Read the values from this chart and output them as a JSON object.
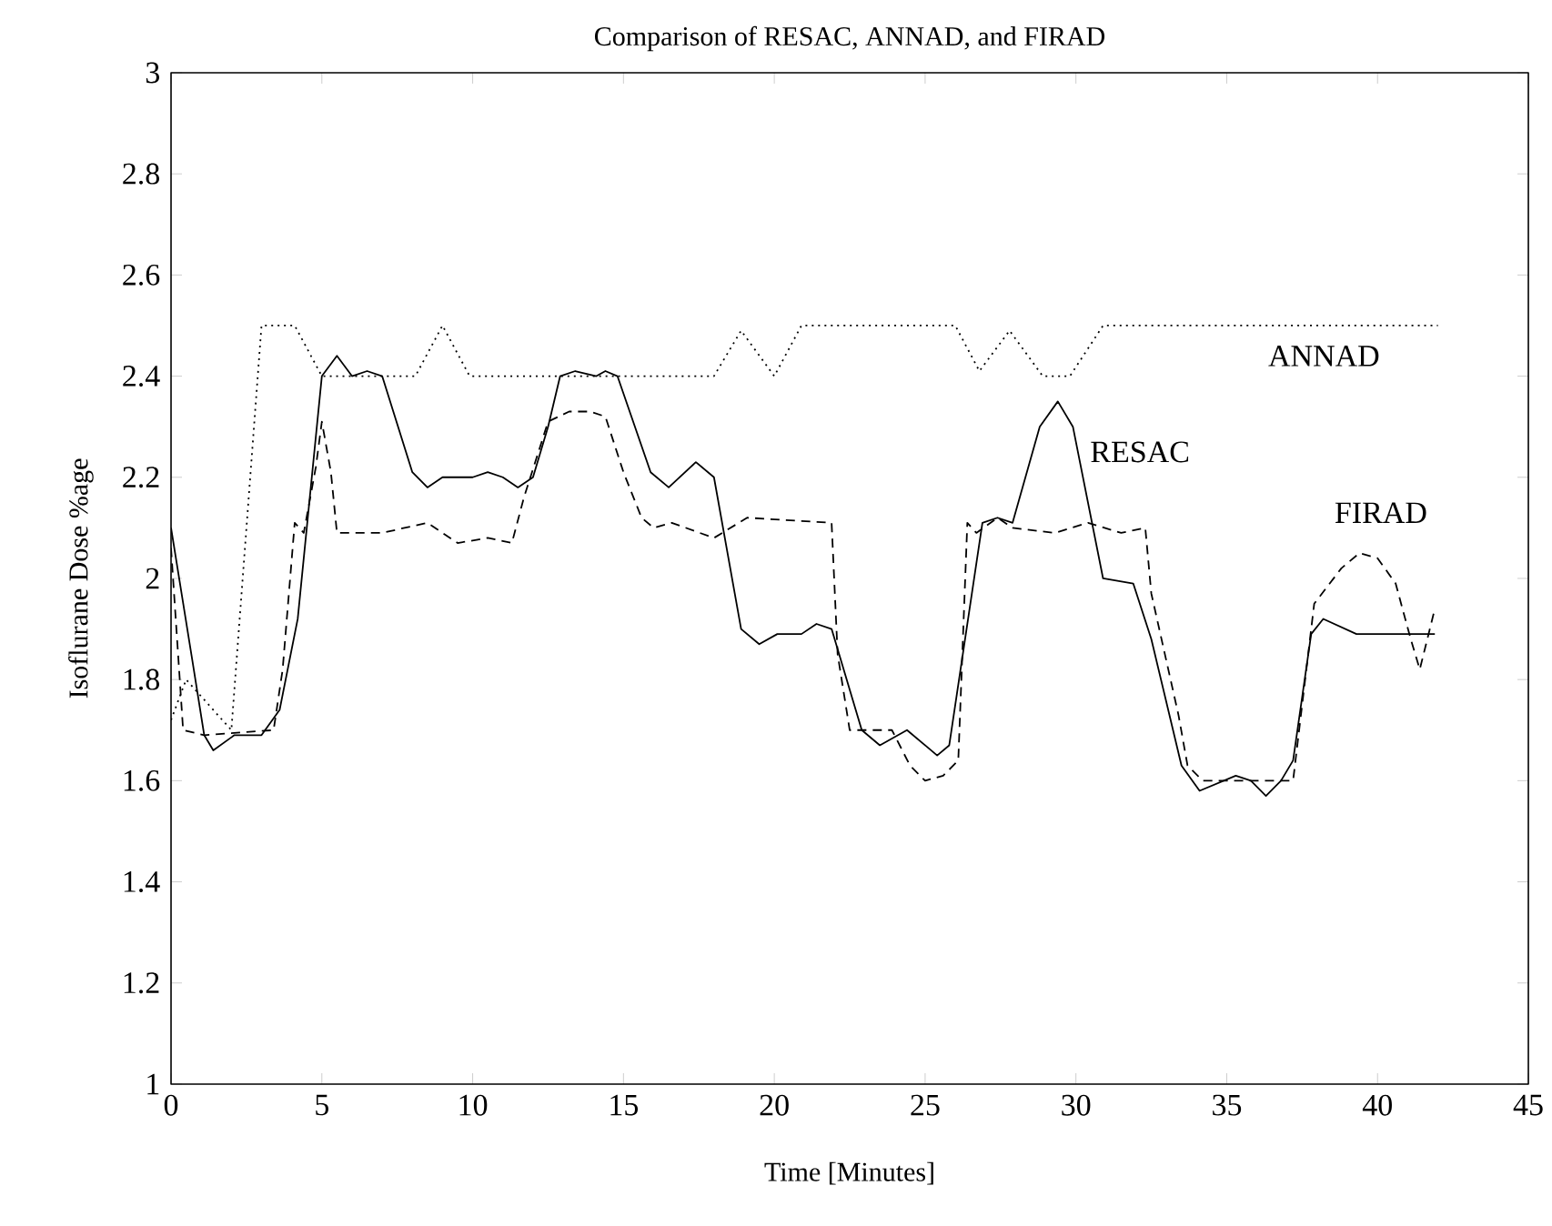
{
  "chart_data": {
    "type": "line",
    "title": "Comparison of RESAC, ANNAD, and FIRAD",
    "xlabel": "Time [Minutes]",
    "ylabel": "Isoflurane Dose %age",
    "xlim": [
      0,
      45
    ],
    "ylim": [
      1,
      3
    ],
    "xticks": [
      0,
      5,
      10,
      15,
      20,
      25,
      30,
      35,
      40,
      45
    ],
    "yticks": [
      1,
      1.2,
      1.4,
      1.6,
      1.8,
      2,
      2.2,
      2.4,
      2.6,
      2.8,
      3
    ],
    "grid": false,
    "marker": "none",
    "series": [
      {
        "name": "ANNAD",
        "color": "#000000",
        "line_style": "dotted",
        "x": [
          0,
          0.5,
          2.0,
          3.0,
          4.1,
          5.0,
          8.1,
          9.0,
          9.9,
          14.8,
          18.0,
          18.9,
          20.0,
          20.9,
          26.0,
          26.8,
          27.8,
          28.9,
          29.8,
          30.9,
          42.0
        ],
        "values": [
          1.72,
          1.8,
          1.7,
          2.5,
          2.5,
          2.4,
          2.4,
          2.5,
          2.4,
          2.4,
          2.4,
          2.49,
          2.4,
          2.5,
          2.5,
          2.41,
          2.49,
          2.4,
          2.4,
          2.5,
          2.5
        ]
      },
      {
        "name": "RESAC",
        "color": "#000000",
        "line_style": "solid",
        "x": [
          0,
          0.7,
          1.1,
          1.4,
          2.1,
          3.0,
          3.6,
          4.2,
          5.0,
          5.5,
          6.0,
          6.5,
          7.0,
          8.0,
          8.5,
          9.0,
          10.0,
          10.5,
          11.0,
          11.5,
          12.0,
          12.5,
          12.9,
          13.4,
          14.1,
          14.4,
          14.8,
          15.9,
          16.5,
          17.4,
          18.0,
          18.9,
          19.5,
          20.1,
          20.9,
          21.4,
          21.9,
          22.9,
          23.5,
          24.4,
          25.4,
          25.8,
          26.9,
          27.4,
          27.9,
          28.8,
          29.4,
          29.9,
          30.9,
          31.9,
          32.5,
          33.5,
          34.1,
          35.3,
          35.8,
          36.3,
          36.8,
          37.2,
          37.8,
          38.2,
          39.3,
          40.3,
          41.9
        ],
        "values": [
          2.1,
          1.84,
          1.69,
          1.66,
          1.69,
          1.69,
          1.74,
          1.92,
          2.4,
          2.44,
          2.4,
          2.41,
          2.4,
          2.21,
          2.18,
          2.2,
          2.2,
          2.21,
          2.2,
          2.18,
          2.2,
          2.3,
          2.4,
          2.41,
          2.4,
          2.41,
          2.4,
          2.21,
          2.18,
          2.23,
          2.2,
          1.9,
          1.87,
          1.89,
          1.89,
          1.91,
          1.9,
          1.7,
          1.67,
          1.7,
          1.65,
          1.67,
          2.11,
          2.12,
          2.11,
          2.3,
          2.35,
          2.3,
          2.0,
          1.99,
          1.88,
          1.63,
          1.58,
          1.61,
          1.6,
          1.57,
          1.6,
          1.64,
          1.89,
          1.92,
          1.89,
          1.89,
          1.89
        ]
      },
      {
        "name": "FIRAD",
        "color": "#000000",
        "line_style": "dashed",
        "x": [
          0,
          0.4,
          1.1,
          3.4,
          3.7,
          4.1,
          4.4,
          4.8,
          5.0,
          5.3,
          5.5,
          7.0,
          8.5,
          9.5,
          10.5,
          11.3,
          11.7,
          12.5,
          13.2,
          13.9,
          14.4,
          15.0,
          15.6,
          16.0,
          16.6,
          18.0,
          19.1,
          21.9,
          22.1,
          22.5,
          23.9,
          24.5,
          25.0,
          25.6,
          26.1,
          26.4,
          26.7,
          27.4,
          27.9,
          29.3,
          30.4,
          31.5,
          32.3,
          32.5,
          33.4,
          33.7,
          34.2,
          37.2,
          37.9,
          38.8,
          39.4,
          40.0,
          40.6,
          41.1,
          41.4,
          41.9
        ],
        "values": [
          2.06,
          1.7,
          1.69,
          1.7,
          1.82,
          2.11,
          2.09,
          2.22,
          2.31,
          2.21,
          2.09,
          2.09,
          2.11,
          2.07,
          2.08,
          2.07,
          2.16,
          2.31,
          2.33,
          2.33,
          2.32,
          2.21,
          2.12,
          2.1,
          2.11,
          2.08,
          2.12,
          2.11,
          1.85,
          1.7,
          1.7,
          1.63,
          1.6,
          1.61,
          1.64,
          2.11,
          2.09,
          2.12,
          2.1,
          2.09,
          2.11,
          2.09,
          2.1,
          1.97,
          1.73,
          1.63,
          1.6,
          1.6,
          1.95,
          2.02,
          2.05,
          2.04,
          1.99,
          1.88,
          1.82,
          1.94
        ]
      }
    ]
  }
}
